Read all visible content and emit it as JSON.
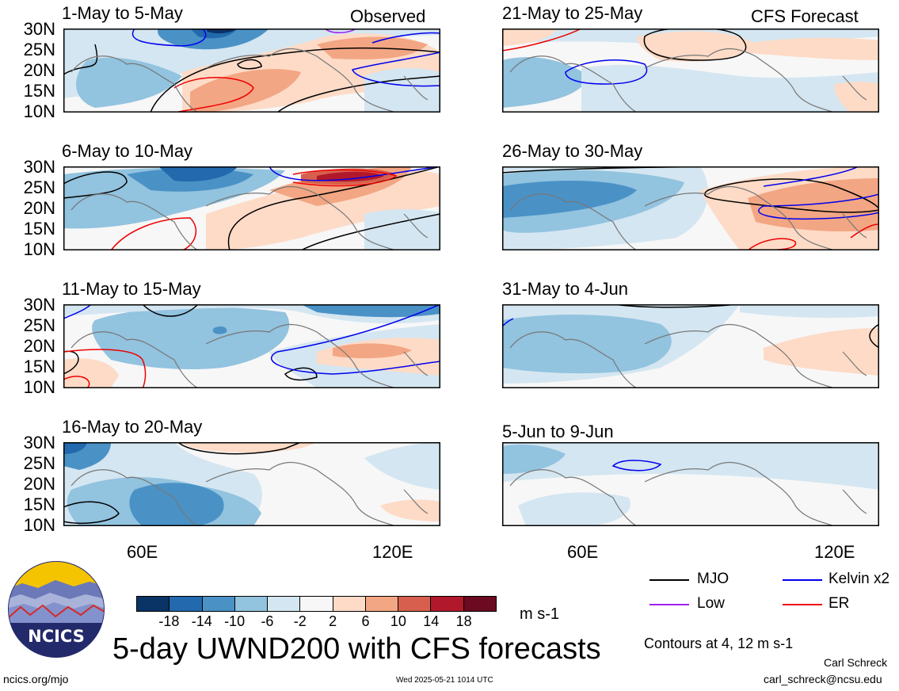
{
  "panels": [
    {
      "title": "1-May to 5-May",
      "tag": "Observed"
    },
    {
      "title": "6-May to 10-May",
      "tag": ""
    },
    {
      "title": "11-May to 15-May",
      "tag": ""
    },
    {
      "title": "16-May to 20-May",
      "tag": ""
    },
    {
      "title": "21-May to 25-May",
      "tag": "CFS Forecast"
    },
    {
      "title": "26-May to 30-May",
      "tag": ""
    },
    {
      "title": "31-May to 4-Jun",
      "tag": ""
    },
    {
      "title": "5-Jun to 9-Jun",
      "tag": ""
    }
  ],
  "lat_labels": [
    "30N",
    "25N",
    "20N",
    "15N",
    "10N"
  ],
  "lon_labels": [
    "60E",
    "120E"
  ],
  "colorbar": {
    "labels": [
      "-18",
      "-14",
      "-10",
      "-6",
      "-2",
      "2",
      "6",
      "10",
      "14",
      "18"
    ],
    "colors": [
      "#0a3366",
      "#2369ad",
      "#4a92c6",
      "#92c3df",
      "#d4e6f1",
      "#f7f7f7",
      "#fddbc7",
      "#f3a683",
      "#d6604d",
      "#b2182b",
      "#6b0a21"
    ],
    "units": "m s-1"
  },
  "legend": {
    "mjo": "MJO",
    "kelvin": "Kelvin x2",
    "low": "Low",
    "er": "ER",
    "colors": {
      "mjo": "#000000",
      "kelvin": "#0000ee",
      "low": "#a020f0",
      "er": "#ee0000"
    }
  },
  "main_title": "5-day UWND200 with CFS forecasts",
  "contours_note": "Contours at 4, 12 m s-1",
  "author": "Carl Schreck",
  "email": "carl_schreck@ncsu.edu",
  "site": "ncics.org/mjo",
  "timestamp": "Wed 2025-05-21 1014 UTC",
  "logo_text": "NCICS"
}
